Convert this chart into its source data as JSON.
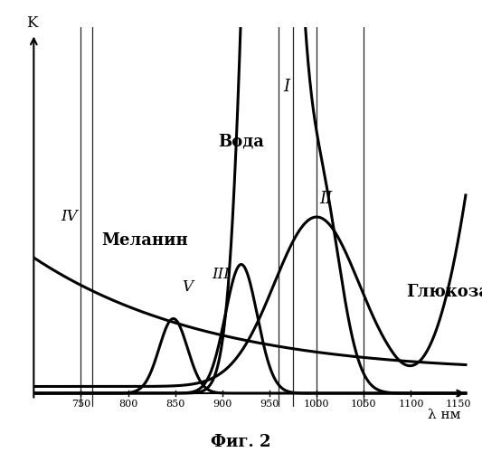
{
  "xlim": [
    700,
    1160
  ],
  "ylim": [
    -0.04,
    1.08
  ],
  "xlabel": "λ нм",
  "ylabel": "K",
  "caption": "Фиг. 2",
  "label_water": "Вода",
  "label_glucose": "Глюкоза",
  "label_melanin": "Меланин",
  "vlines": [
    750,
    762,
    960,
    975,
    1000,
    1050
  ],
  "xticks": [
    750,
    800,
    850,
    900,
    950,
    1000,
    1050,
    1100,
    1150
  ],
  "background": "#ffffff",
  "linewidth": 2.2,
  "line_color": "#000000"
}
